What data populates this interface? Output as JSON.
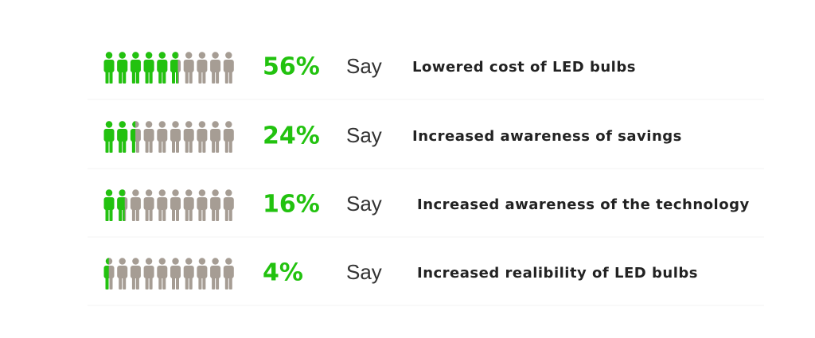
{
  "chart_data": {
    "type": "pictogram",
    "categories": [
      "Lowered cost of LED bulbs",
      "Increased awareness of savings",
      "Increased awareness of the technology",
      "Increased realibility of LED bulbs"
    ],
    "values": [
      56,
      24,
      16,
      4
    ],
    "value_labels": [
      "56%",
      "24%",
      "16%",
      "4%"
    ],
    "connector": "Say",
    "xlim": [
      0,
      100
    ],
    "color": "#22c20f",
    "base_color": "#a69d94"
  }
}
